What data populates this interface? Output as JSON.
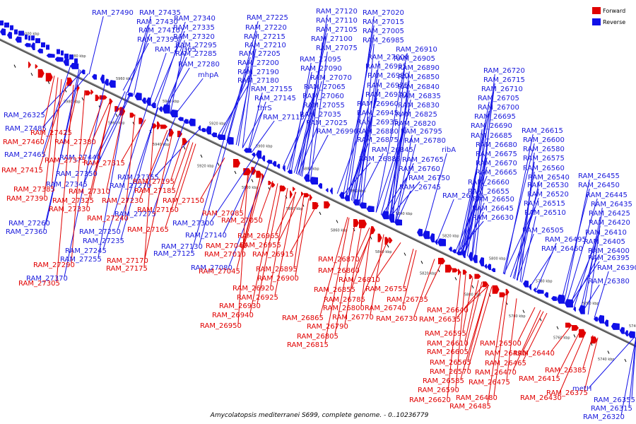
{
  "title": "Amycolatopsis mediterranei S699, complete genome. - 0..10236779",
  "legend": [
    {
      "label": "Forward",
      "color": "#e00000"
    },
    {
      "label": "Reverse",
      "color": "#1010e8"
    }
  ],
  "axis_ticks_upper": [
    "6000 kbp",
    "5980 kbp",
    "5960 kbp",
    "5940 kbp",
    "5920 kbp",
    "5900 kbp",
    "5880 kbp",
    "5860 kbp",
    "5840 kbp",
    "5820 kbp",
    "5800 kbp",
    "5780 kbp",
    "5760 kbp",
    "5740 kbp"
  ],
  "axis_ticks_lower": [
    "5980 kbp",
    "5960 kbp",
    "5940 kbp",
    "5920 kbp",
    "5900 kbp",
    "5880 kbp",
    "5860 kbp",
    "5840 kbp",
    "5820 kbp",
    "5800 kbp",
    "5780 kbp",
    "5760 kbp",
    "5740 kbp"
  ],
  "reverse_labels": [
    "RAM_27490",
    "RAM_27435",
    "RAM_27430",
    "RAM_27410",
    "RAM_27395",
    "RAM_27340",
    "RAM_27335",
    "RAM_27320",
    "RAM_27365",
    "RAM_27295",
    "RAM_27285",
    "RAM_27280",
    "mhpA",
    "RAM_27225",
    "RAM_27220",
    "RAM_27215",
    "RAM_27210",
    "RAM_27205",
    "RAM_27200",
    "RAM_27190",
    "RAM_27180",
    "RAM_27155",
    "RAM_27145",
    "thrS",
    "RAM_27115",
    "RAM_27120",
    "RAM_27110",
    "RAM_27105",
    "RAM_27100",
    "RAM_27075",
    "RAM_27095",
    "RAM_27090",
    "RAM_27070",
    "RAM_27065",
    "RAM_27060",
    "RAM_27055",
    "RAM_27035",
    "RAM_27025",
    "RAM_26990",
    "RAM_27020",
    "RAM_27015",
    "RAM_27005",
    "RAM_26985",
    "RAM_27000",
    "RAM_26995",
    "RAM_26980",
    "RAM_26975",
    "RAM_26970",
    "RAM_26960",
    "RAM_26945",
    "RAM_26935",
    "RAM_26880",
    "RAM_26875",
    "RAM_26845",
    "RAM_26885",
    "RAM_26910",
    "RAM_26905",
    "RAM_26890",
    "RAM_26850",
    "RAM_26840",
    "RAM_26835",
    "RAM_26830",
    "RAM_26825",
    "RAM_26820",
    "RAM_26795",
    "RAM_26780",
    "ribA",
    "RAM_26765",
    "RAM_26760",
    "RAM_26750",
    "RAM_26745",
    "RAM_26725",
    "RAM_26720",
    "RAM_26715",
    "RAM_26710",
    "RAM_26705",
    "RAM_26700",
    "RAM_26695",
    "RAM_26690",
    "RAM_26685",
    "RAM_26680",
    "RAM_26675",
    "RAM_26670",
    "RAM_26665",
    "RAM_26660",
    "RAM_26655",
    "RAM_26650",
    "RAM_26645",
    "RAM_26630",
    "RAM_26615",
    "RAM_26600",
    "RAM_26580",
    "RAM_26575",
    "RAM_26560",
    "RAM_26540",
    "RAM_26530",
    "RAM_26520",
    "RAM_26515",
    "RAM_26510",
    "RAM_26505",
    "RAM_26495",
    "RAM_26460",
    "RAM_26455",
    "RAM_26450",
    "RAM_26445",
    "RAM_26435",
    "RAM_26425",
    "RAM_26420",
    "RAM_26410",
    "RAM_26405",
    "RAM_26400",
    "RAM_26395",
    "RAM_26390",
    "RAM_26380",
    "metH",
    "RAM_26355",
    "RAM_26315",
    "RAM_26320",
    "RAM_26325",
    "RAM_27485",
    "RAM_27465",
    "RAM_27440",
    "RAM_27350",
    "RAM_27345",
    "RAM_27355",
    "RAM_27270",
    "RAM_27275",
    "RAM_27235",
    "RAM_27250",
    "RAM_27245",
    "RAM_27255",
    "RAM_27260",
    "RAM_27360",
    "RAM_27370",
    "RAM_27300",
    "RAM_27130",
    "RAM_27125",
    "RAM_27140",
    "RAM_27080",
    "RAM_27030"
  ],
  "forward_labels": [
    "RAM_27425",
    "RAM_27460",
    "RAM_27380",
    "RAM_27375",
    "RAM_27315",
    "RAM_27415",
    "RAM_27385",
    "RAM_27390",
    "RAM_27310",
    "RAM_27325",
    "RAM_27330",
    "RAM_27230",
    "RAM_27240",
    "RAM_27195",
    "RAM_27185",
    "RAM_27160",
    "RAM_27150",
    "RAM_27165",
    "RAM_27085",
    "RAM_27050",
    "RAM_27040",
    "RAM_27010",
    "RAM_27045",
    "RAM_27170",
    "RAM_27175",
    "RAM_27290",
    "RAM_27305",
    "RAM_26965",
    "RAM_26955",
    "RAM_26915",
    "RAM_26895",
    "RAM_26900",
    "RAM_26920",
    "RAM_26925",
    "RAM_26930",
    "RAM_26940",
    "RAM_26950",
    "RAM_26870",
    "RAM_26860",
    "RAM_26855",
    "RAM_26810",
    "RAM_26785",
    "RAM_26800",
    "RAM_26770",
    "RAM_26790",
    "RAM_26805",
    "RAM_26815",
    "RAM_26865",
    "RAM_26755",
    "RAM_26740",
    "RAM_26735",
    "RAM_26730",
    "RAM_26640",
    "RAM_26635",
    "RAM_26595",
    "RAM_26610",
    "RAM_26605",
    "RAM_26565",
    "RAM_26570",
    "RAM_26585",
    "RAM_26590",
    "RAM_26620",
    "RAM_26500",
    "RAM_26490",
    "RAM_26465",
    "RAM_26470",
    "RAM_26475",
    "RAM_26480",
    "RAM_26485",
    "RAM_26440",
    "RAM_26415",
    "RAM_26430",
    "RAM_26385",
    "RAM_26375"
  ]
}
